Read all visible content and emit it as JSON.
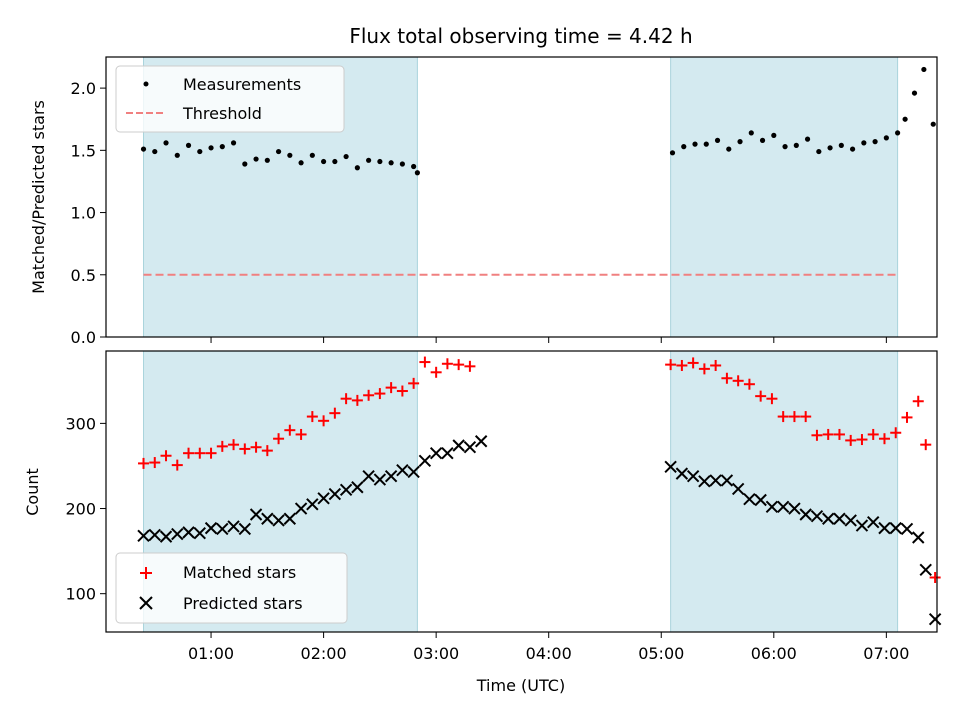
{
  "chart_data": [
    {
      "type": "scatter",
      "title": "Flux total observing time = 4.42 h",
      "xlabel": "",
      "ylabel": "Matched/Predicted stars",
      "ylim": [
        0,
        2.25
      ],
      "yticks": [
        0.0,
        0.5,
        1.0,
        1.5,
        2.0
      ],
      "ytick_labels": [
        "0.0",
        "0.5",
        "1.0",
        "1.5",
        "2.0"
      ],
      "legend_position": "top-left",
      "shaded_spans": [
        [
          "00:24",
          "02:50"
        ],
        [
          "05:05",
          "07:06"
        ]
      ],
      "span_color": "#d4eaf0",
      "series": [
        {
          "name": "Measurements",
          "marker": "dot",
          "color": "#000000",
          "points": [
            [
              "00:24",
              1.51
            ],
            [
              "00:30",
              1.49
            ],
            [
              "00:36",
              1.56
            ],
            [
              "00:42",
              1.46
            ],
            [
              "00:48",
              1.54
            ],
            [
              "00:54",
              1.49
            ],
            [
              "01:00",
              1.52
            ],
            [
              "01:06",
              1.53
            ],
            [
              "01:12",
              1.56
            ],
            [
              "01:18",
              1.39
            ],
            [
              "01:24",
              1.43
            ],
            [
              "01:30",
              1.42
            ],
            [
              "01:36",
              1.49
            ],
            [
              "01:42",
              1.46
            ],
            [
              "01:48",
              1.4
            ],
            [
              "01:54",
              1.46
            ],
            [
              "02:00",
              1.41
            ],
            [
              "02:06",
              1.41
            ],
            [
              "02:12",
              1.45
            ],
            [
              "02:18",
              1.36
            ],
            [
              "02:24",
              1.42
            ],
            [
              "02:30",
              1.41
            ],
            [
              "02:36",
              1.4
            ],
            [
              "02:42",
              1.39
            ],
            [
              "02:48",
              1.37
            ],
            [
              "02:50",
              1.32
            ],
            [
              "05:06",
              1.48
            ],
            [
              "05:12",
              1.53
            ],
            [
              "05:18",
              1.55
            ],
            [
              "05:24",
              1.55
            ],
            [
              "05:30",
              1.58
            ],
            [
              "05:36",
              1.51
            ],
            [
              "05:42",
              1.57
            ],
            [
              "05:48",
              1.64
            ],
            [
              "05:54",
              1.58
            ],
            [
              "06:00",
              1.62
            ],
            [
              "06:06",
              1.53
            ],
            [
              "06:12",
              1.54
            ],
            [
              "06:18",
              1.59
            ],
            [
              "06:24",
              1.49
            ],
            [
              "06:30",
              1.52
            ],
            [
              "06:36",
              1.54
            ],
            [
              "06:42",
              1.51
            ],
            [
              "06:48",
              1.56
            ],
            [
              "06:54",
              1.57
            ],
            [
              "07:00",
              1.6
            ],
            [
              "07:06",
              1.64
            ],
            [
              "07:10",
              1.75
            ],
            [
              "07:15",
              1.96
            ],
            [
              "07:20",
              2.15
            ],
            [
              "07:25",
              1.71
            ]
          ]
        },
        {
          "name": "Threshold",
          "type": "line",
          "style": "dashed",
          "color": "#f08080",
          "points": [
            [
              "00:24",
              0.5
            ],
            [
              "07:06",
              0.5
            ]
          ]
        }
      ]
    },
    {
      "type": "scatter",
      "xlabel": "Time (UTC)",
      "ylabel": "Count",
      "ylim": [
        55,
        385
      ],
      "yticks": [
        100,
        200,
        300
      ],
      "ytick_labels": [
        "100",
        "200",
        "300"
      ],
      "xlim": [
        "00:04",
        "07:27"
      ],
      "xticks": [
        "01:00",
        "02:00",
        "03:00",
        "04:00",
        "05:00",
        "06:00",
        "07:00"
      ],
      "legend_position": "bottom-left",
      "shaded_spans": [
        [
          "00:24",
          "02:50"
        ],
        [
          "05:05",
          "07:06"
        ]
      ],
      "span_color": "#d4eaf0",
      "series": [
        {
          "name": "Matched stars",
          "marker": "plus",
          "color": "#ff0000",
          "points": [
            [
              "00:24",
              253
            ],
            [
              "00:30",
              254
            ],
            [
              "00:36",
              262
            ],
            [
              "00:42",
              251
            ],
            [
              "00:48",
              265
            ],
            [
              "00:54",
              265
            ],
            [
              "01:00",
              265
            ],
            [
              "01:06",
              273
            ],
            [
              "01:12",
              275
            ],
            [
              "01:18",
              270
            ],
            [
              "01:24",
              272
            ],
            [
              "01:30",
              268
            ],
            [
              "01:36",
              282
            ],
            [
              "01:42",
              292
            ],
            [
              "01:48",
              287
            ],
            [
              "01:54",
              308
            ],
            [
              "02:00",
              303
            ],
            [
              "02:06",
              312
            ],
            [
              "02:12",
              329
            ],
            [
              "02:18",
              327
            ],
            [
              "02:24",
              333
            ],
            [
              "02:30",
              335
            ],
            [
              "02:36",
              342
            ],
            [
              "02:42",
              338
            ],
            [
              "02:48",
              347
            ],
            [
              "02:54",
              372
            ],
            [
              "03:00",
              360
            ],
            [
              "03:06",
              370
            ],
            [
              "03:12",
              369
            ],
            [
              "03:18",
              367
            ],
            [
              "05:05",
              369
            ],
            [
              "05:11",
              368
            ],
            [
              "05:17",
              371
            ],
            [
              "05:23",
              364
            ],
            [
              "05:29",
              368
            ],
            [
              "05:35",
              353
            ],
            [
              "05:41",
              350
            ],
            [
              "05:47",
              346
            ],
            [
              "05:53",
              332
            ],
            [
              "05:59",
              329
            ],
            [
              "06:05",
              308
            ],
            [
              "06:11",
              308
            ],
            [
              "06:17",
              308
            ],
            [
              "06:23",
              286
            ],
            [
              "06:29",
              287
            ],
            [
              "06:35",
              287
            ],
            [
              "06:41",
              280
            ],
            [
              "06:47",
              281
            ],
            [
              "06:53",
              287
            ],
            [
              "06:59",
              282
            ],
            [
              "07:05",
              289
            ],
            [
              "07:11",
              307
            ],
            [
              "07:17",
              326
            ],
            [
              "07:21",
              275
            ],
            [
              "07:26",
              119
            ]
          ]
        },
        {
          "name": "Predicted stars",
          "marker": "x",
          "color": "#000000",
          "points": [
            [
              "00:24",
              168
            ],
            [
              "00:30",
              169
            ],
            [
              "00:36",
              167
            ],
            [
              "00:42",
              170
            ],
            [
              "00:48",
              172
            ],
            [
              "00:54",
              171
            ],
            [
              "01:00",
              177
            ],
            [
              "01:06",
              176
            ],
            [
              "01:12",
              179
            ],
            [
              "01:18",
              176
            ],
            [
              "01:24",
              193
            ],
            [
              "01:30",
              188
            ],
            [
              "01:36",
              186
            ],
            [
              "01:42",
              188
            ],
            [
              "01:48",
              200
            ],
            [
              "01:54",
              205
            ],
            [
              "02:00",
              212
            ],
            [
              "02:06",
              217
            ],
            [
              "02:12",
              222
            ],
            [
              "02:18",
              225
            ],
            [
              "02:24",
              238
            ],
            [
              "02:30",
              234
            ],
            [
              "02:36",
              238
            ],
            [
              "02:42",
              245
            ],
            [
              "02:48",
              243
            ],
            [
              "02:54",
              256
            ],
            [
              "03:00",
              265
            ],
            [
              "03:06",
              265
            ],
            [
              "03:12",
              274
            ],
            [
              "03:18",
              272
            ],
            [
              "03:24",
              279
            ],
            [
              "05:05",
              249
            ],
            [
              "05:11",
              241
            ],
            [
              "05:17",
              238
            ],
            [
              "05:23",
              232
            ],
            [
              "05:29",
              233
            ],
            [
              "05:35",
              233
            ],
            [
              "05:41",
              223
            ],
            [
              "05:47",
              211
            ],
            [
              "05:53",
              210
            ],
            [
              "05:59",
              202
            ],
            [
              "06:05",
              202
            ],
            [
              "06:11",
              200
            ],
            [
              "06:17",
              193
            ],
            [
              "06:23",
              191
            ],
            [
              "06:29",
              188
            ],
            [
              "06:35",
              188
            ],
            [
              "06:41",
              186
            ],
            [
              "06:47",
              180
            ],
            [
              "06:53",
              184
            ],
            [
              "06:59",
              177
            ],
            [
              "07:05",
              177
            ],
            [
              "07:11",
              176
            ],
            [
              "07:17",
              166
            ],
            [
              "07:21",
              128
            ],
            [
              "07:26",
              70
            ]
          ]
        }
      ]
    }
  ]
}
